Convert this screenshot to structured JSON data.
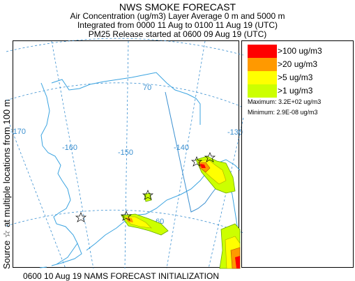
{
  "header": {
    "title": "NWS SMOKE FORECAST",
    "line2": "Air Concentration (ug/m3) Layer Average    0 m and  5000 m",
    "line3": "Integrated from 0000 11 Aug to 0100 11 Aug 19 (UTC)",
    "line4": "PM25 Release started at 0600 09 Aug 19 (UTC)"
  },
  "sidebar": {
    "label": "Source ☆  at multiple locations     from   100 m"
  },
  "map": {
    "longitude_labels": [
      "-170",
      "-160",
      "-150",
      "-140",
      "-130"
    ],
    "latitude_labels": [
      "70",
      "60"
    ],
    "colors": {
      "graticule": "#3a8fd0",
      "coastline": "#3aa3e0",
      "border": "#3a8fd0"
    }
  },
  "legend": {
    "items": [
      {
        "label": ">100 ug/m3",
        "color": "#ff0000"
      },
      {
        "label": ">20 ug/m3",
        "color": "#ff9900"
      },
      {
        "label": ">5 ug/m3",
        "color": "#ffff00"
      },
      {
        "label": ">1 ug/m3",
        "color": "#ccff00"
      }
    ],
    "maximum": "Maximum: 3.2E+02 ug/m3",
    "minimum": "Minimum: 2.9E-08 ug/m3"
  },
  "footer": {
    "text": "0600 10 Aug 19 NAMS FORECAST INITIALIZATION"
  }
}
